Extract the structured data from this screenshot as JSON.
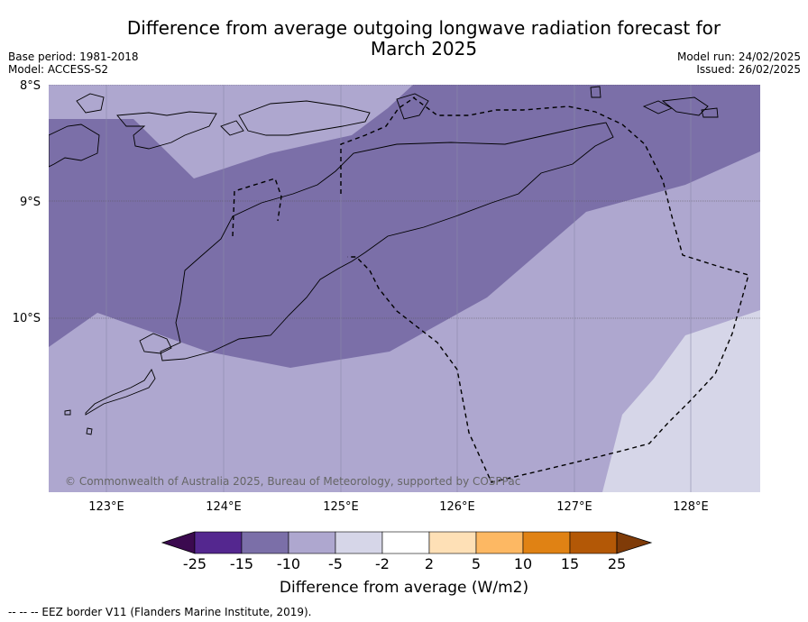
{
  "title_line1": "Difference from average outgoing longwave radiation forecast for",
  "title_line2": "March 2025",
  "base_period": "Base period: 1981-2018",
  "model": "Model: ACCESS-S2",
  "model_run": "Model run: 24/02/2025",
  "issued": "Issued: 26/02/2025",
  "lat_labels": [
    "8°S",
    "9°S",
    "10°S"
  ],
  "lon_labels": [
    "123°E",
    "124°E",
    "125°E",
    "126°E",
    "127°E",
    "128°E"
  ],
  "copyright": "© Commonwealth of Australia 2025, Bureau of Meteorology, supported by COSPPac",
  "colorbar": {
    "title": "Difference from average (W/m2)",
    "ticks": [
      "-25",
      "-15",
      "-10",
      "-5",
      "-2",
      "2",
      "5",
      "10",
      "15",
      "25"
    ],
    "colors": [
      "#3b0a4f",
      "#54278f",
      "#7b6fa8",
      "#aea7cf",
      "#d6d6e8",
      "#ffffff",
      "#fee0b6",
      "#fdb863",
      "#e08214",
      "#b35806",
      "#7f3b08"
    ]
  },
  "footnote": "-- -- -- EEZ border V11 (Flanders Marine Institute, 2019)."
}
